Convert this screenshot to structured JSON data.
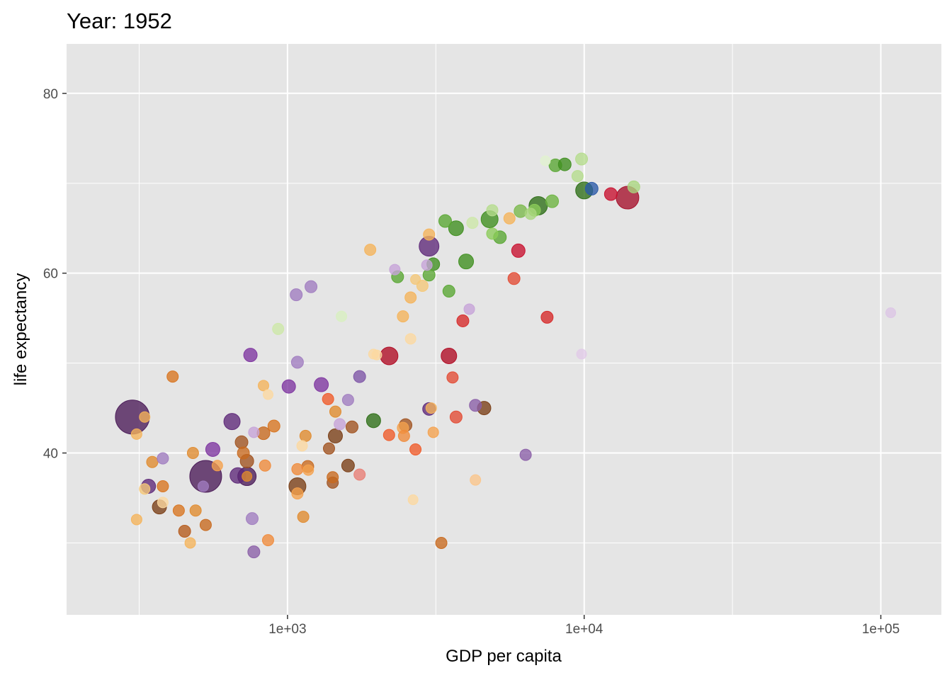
{
  "chart_data": {
    "type": "scatter",
    "title": "Year: 1952",
    "xlabel": "GDP per capita",
    "ylabel": "life expectancy",
    "x_scale": "log10",
    "xlim": [
      180,
      160000
    ],
    "ylim": [
      22,
      85.5
    ],
    "x_ticks": [
      {
        "value": 1000,
        "label": "1e+03"
      },
      {
        "value": 10000,
        "label": "1e+04"
      },
      {
        "value": 100000,
        "label": "1e+05"
      }
    ],
    "y_ticks": [
      {
        "value": 40,
        "label": "40"
      },
      {
        "value": 60,
        "label": "60"
      },
      {
        "value": 80,
        "label": "80"
      }
    ],
    "x_minor": [
      316.23,
      3162.28,
      31622.78
    ],
    "y_minor": [
      30,
      50,
      70
    ],
    "grid": true,
    "legend": "none",
    "points": [
      {
        "x": 300,
        "y": 44.0,
        "size": 48,
        "color": "#4a1a57"
      },
      {
        "x": 530,
        "y": 37.4,
        "size": 45,
        "color": "#4a1a57"
      },
      {
        "x": 14000,
        "y": 68.4,
        "size": 32,
        "color": "#a50f2a"
      },
      {
        "x": 3000,
        "y": 63.0,
        "size": 28,
        "color": "#5e2878"
      },
      {
        "x": 4800,
        "y": 66.0,
        "size": 24,
        "color": "#3e8e1e"
      },
      {
        "x": 7000,
        "y": 67.5,
        "size": 26,
        "color": "#2d6e16"
      },
      {
        "x": 10000,
        "y": 69.2,
        "size": 24,
        "color": "#2d6e16"
      },
      {
        "x": 2200,
        "y": 50.8,
        "size": 25,
        "color": "#b00a23"
      },
      {
        "x": 650,
        "y": 43.5,
        "size": 23,
        "color": "#5e2878"
      },
      {
        "x": 730,
        "y": 37.4,
        "size": 26,
        "color": "#4a1a57"
      },
      {
        "x": 680,
        "y": 37.5,
        "size": 22,
        "color": "#5e2878"
      },
      {
        "x": 1080,
        "y": 36.3,
        "size": 24,
        "color": "#7a3e15"
      },
      {
        "x": 3500,
        "y": 50.8,
        "size": 22,
        "color": "#b00a23"
      },
      {
        "x": 340,
        "y": 36.3,
        "size": 20,
        "color": "#5e2878"
      },
      {
        "x": 370,
        "y": 34.0,
        "size": 20,
        "color": "#7a3e15"
      },
      {
        "x": 560,
        "y": 40.4,
        "size": 20,
        "color": "#7e35a0"
      },
      {
        "x": 1300,
        "y": 47.6,
        "size": 20,
        "color": "#7e35a0"
      },
      {
        "x": 1450,
        "y": 41.9,
        "size": 20,
        "color": "#7a3e15"
      },
      {
        "x": 1950,
        "y": 43.6,
        "size": 20,
        "color": "#2d6e16"
      },
      {
        "x": 3700,
        "y": 65.0,
        "size": 21,
        "color": "#3e8e1e"
      },
      {
        "x": 4000,
        "y": 61.3,
        "size": 21,
        "color": "#3e8e1e"
      },
      {
        "x": 3400,
        "y": 65.8,
        "size": 18,
        "color": "#58a632"
      },
      {
        "x": 5200,
        "y": 64.0,
        "size": 18,
        "color": "#58a632"
      },
      {
        "x": 3100,
        "y": 61.0,
        "size": 18,
        "color": "#3e8e1e"
      },
      {
        "x": 3500,
        "y": 58.0,
        "size": 17,
        "color": "#58a632"
      },
      {
        "x": 8000,
        "y": 72.0,
        "size": 18,
        "color": "#58a632"
      },
      {
        "x": 8600,
        "y": 72.1,
        "size": 18,
        "color": "#3e8e1e"
      },
      {
        "x": 10600,
        "y": 69.4,
        "size": 18,
        "color": "#2a5aa8"
      },
      {
        "x": 12300,
        "y": 68.8,
        "size": 18,
        "color": "#c8102e"
      },
      {
        "x": 6000,
        "y": 62.5,
        "size": 19,
        "color": "#c8102e"
      },
      {
        "x": 7500,
        "y": 55.1,
        "size": 17,
        "color": "#d62828"
      },
      {
        "x": 3900,
        "y": 54.7,
        "size": 17,
        "color": "#d62828"
      },
      {
        "x": 5800,
        "y": 59.4,
        "size": 17,
        "color": "#e34a33"
      },
      {
        "x": 3600,
        "y": 48.4,
        "size": 16,
        "color": "#e34a33"
      },
      {
        "x": 3700,
        "y": 44.0,
        "size": 17,
        "color": "#e34a33"
      },
      {
        "x": 4600,
        "y": 45.0,
        "size": 19,
        "color": "#7a3e15"
      },
      {
        "x": 3000,
        "y": 44.9,
        "size": 18,
        "color": "#5e2878"
      },
      {
        "x": 2500,
        "y": 43.1,
        "size": 18,
        "color": "#a0521f"
      },
      {
        "x": 1650,
        "y": 42.9,
        "size": 17,
        "color": "#a0521f"
      },
      {
        "x": 1380,
        "y": 40.5,
        "size": 16,
        "color": "#a0521f"
      },
      {
        "x": 1600,
        "y": 38.6,
        "size": 18,
        "color": "#7a3e15"
      },
      {
        "x": 1420,
        "y": 36.7,
        "size": 16,
        "color": "#a0521f"
      },
      {
        "x": 1420,
        "y": 37.3,
        "size": 16,
        "color": "#c8691d"
      },
      {
        "x": 1450,
        "y": 44.6,
        "size": 16,
        "color": "#e08a2d"
      },
      {
        "x": 1370,
        "y": 46.0,
        "size": 16,
        "color": "#f05a28"
      },
      {
        "x": 1750,
        "y": 37.6,
        "size": 16,
        "color": "#e97e75"
      },
      {
        "x": 1600,
        "y": 45.9,
        "size": 16,
        "color": "#a07cc0"
      },
      {
        "x": 1500,
        "y": 43.2,
        "size": 16,
        "color": "#c6a3d8"
      },
      {
        "x": 1750,
        "y": 48.5,
        "size": 17,
        "color": "#7e55a6"
      },
      {
        "x": 2350,
        "y": 59.6,
        "size": 17,
        "color": "#58a632"
      },
      {
        "x": 3000,
        "y": 59.8,
        "size": 17,
        "color": "#58a632"
      },
      {
        "x": 2200,
        "y": 42.0,
        "size": 16,
        "color": "#f05a28"
      },
      {
        "x": 2450,
        "y": 42.8,
        "size": 16,
        "color": "#f5a14d"
      },
      {
        "x": 2470,
        "y": 41.9,
        "size": 16,
        "color": "#f08a3a"
      },
      {
        "x": 2700,
        "y": 40.4,
        "size": 16,
        "color": "#f05a28"
      },
      {
        "x": 3100,
        "y": 42.3,
        "size": 15,
        "color": "#f5a14d"
      },
      {
        "x": 3050,
        "y": 45.0,
        "size": 15,
        "color": "#f5b35a"
      },
      {
        "x": 3300,
        "y": 30.0,
        "size": 16,
        "color": "#c8691d"
      },
      {
        "x": 4300,
        "y": 45.3,
        "size": 17,
        "color": "#8b5fa8"
      },
      {
        "x": 6350,
        "y": 39.8,
        "size": 16,
        "color": "#8b5fa8"
      },
      {
        "x": 1070,
        "y": 57.6,
        "size": 17,
        "color": "#a07cc0"
      },
      {
        "x": 1200,
        "y": 58.5,
        "size": 17,
        "color": "#a07cc0"
      },
      {
        "x": 1080,
        "y": 50.1,
        "size": 17,
        "color": "#a07cc0"
      },
      {
        "x": 1010,
        "y": 47.4,
        "size": 19,
        "color": "#7e35a0"
      },
      {
        "x": 750,
        "y": 50.9,
        "size": 19,
        "color": "#7e35a0"
      },
      {
        "x": 930,
        "y": 53.8,
        "size": 16,
        "color": "#cde8a8"
      },
      {
        "x": 1520,
        "y": 55.2,
        "size": 15,
        "color": "#d8f0c0"
      },
      {
        "x": 1900,
        "y": 62.6,
        "size": 16,
        "color": "#f5b35a"
      },
      {
        "x": 1950,
        "y": 51.0,
        "size": 14,
        "color": "#fcd9a0"
      },
      {
        "x": 2600,
        "y": 57.3,
        "size": 16,
        "color": "#f5b35a"
      },
      {
        "x": 2600,
        "y": 52.7,
        "size": 15,
        "color": "#fcd9a0"
      },
      {
        "x": 2450,
        "y": 55.2,
        "size": 16,
        "color": "#f5b35a"
      },
      {
        "x": 2850,
        "y": 58.6,
        "size": 16,
        "color": "#f5c878"
      },
      {
        "x": 3000,
        "y": 64.3,
        "size": 16,
        "color": "#f5b35a"
      },
      {
        "x": 2300,
        "y": 60.4,
        "size": 15,
        "color": "#c6a3d8"
      },
      {
        "x": 2950,
        "y": 60.9,
        "size": 15,
        "color": "#c6a3d8"
      },
      {
        "x": 4200,
        "y": 65.6,
        "size": 16,
        "color": "#cde8a8"
      },
      {
        "x": 4100,
        "y": 56.0,
        "size": 15,
        "color": "#c6a3d8"
      },
      {
        "x": 4900,
        "y": 67.0,
        "size": 16,
        "color": "#b5dc8c"
      },
      {
        "x": 4900,
        "y": 64.4,
        "size": 16,
        "color": "#8ccc5a"
      },
      {
        "x": 5600,
        "y": 66.1,
        "size": 16,
        "color": "#f5b35a"
      },
      {
        "x": 6100,
        "y": 66.9,
        "size": 18,
        "color": "#7ab84a"
      },
      {
        "x": 6600,
        "y": 66.6,
        "size": 16,
        "color": "#a9d67e"
      },
      {
        "x": 6800,
        "y": 67.0,
        "size": 17,
        "color": "#8ccc5a"
      },
      {
        "x": 7400,
        "y": 72.5,
        "size": 14,
        "color": "#e2f2d0"
      },
      {
        "x": 7800,
        "y": 68.0,
        "size": 18,
        "color": "#6cb33f"
      },
      {
        "x": 9500,
        "y": 70.8,
        "size": 16,
        "color": "#b5dc8c"
      },
      {
        "x": 9800,
        "y": 72.7,
        "size": 17,
        "color": "#b5dc8c"
      },
      {
        "x": 14700,
        "y": 69.6,
        "size": 17,
        "color": "#a9d67e"
      },
      {
        "x": 9800,
        "y": 51.0,
        "size": 14,
        "color": "#e2cbe8"
      },
      {
        "x": 108000,
        "y": 55.6,
        "size": 14,
        "color": "#dcc5e6"
      },
      {
        "x": 4300,
        "y": 37.0,
        "size": 15,
        "color": "#fbc58a"
      },
      {
        "x": 2650,
        "y": 34.8,
        "size": 14,
        "color": "#fcd9a0"
      },
      {
        "x": 770,
        "y": 42.3,
        "size": 15,
        "color": "#c6a3d8"
      },
      {
        "x": 770,
        "y": 29.0,
        "size": 17,
        "color": "#8b5fa8"
      },
      {
        "x": 760,
        "y": 32.7,
        "size": 17,
        "color": "#a07cc0"
      },
      {
        "x": 730,
        "y": 39.1,
        "size": 19,
        "color": "#a0521f"
      },
      {
        "x": 700,
        "y": 41.2,
        "size": 18,
        "color": "#a0521f"
      },
      {
        "x": 710,
        "y": 40.0,
        "size": 17,
        "color": "#c8691d"
      },
      {
        "x": 830,
        "y": 42.2,
        "size": 18,
        "color": "#c8691d"
      },
      {
        "x": 900,
        "y": 43.0,
        "size": 17,
        "color": "#d8741f"
      },
      {
        "x": 830,
        "y": 47.5,
        "size": 15,
        "color": "#f5b35a"
      },
      {
        "x": 860,
        "y": 46.5,
        "size": 14,
        "color": "#fcd9a0"
      },
      {
        "x": 840,
        "y": 38.6,
        "size": 16,
        "color": "#f08a3a"
      },
      {
        "x": 730,
        "y": 37.4,
        "size": 14,
        "color": "#e08a2d"
      },
      {
        "x": 860,
        "y": 30.3,
        "size": 16,
        "color": "#f08a3a"
      },
      {
        "x": 1080,
        "y": 38.2,
        "size": 16,
        "color": "#f08a3a"
      },
      {
        "x": 1080,
        "y": 35.5,
        "size": 16,
        "color": "#f5a14d"
      },
      {
        "x": 1120,
        "y": 40.8,
        "size": 15,
        "color": "#fcd9a0"
      },
      {
        "x": 1150,
        "y": 41.9,
        "size": 16,
        "color": "#e08a2d"
      },
      {
        "x": 1170,
        "y": 38.5,
        "size": 17,
        "color": "#c8691d"
      },
      {
        "x": 1130,
        "y": 32.9,
        "size": 16,
        "color": "#e08a2d"
      },
      {
        "x": 1175,
        "y": 38.1,
        "size": 15,
        "color": "#f5a14d"
      },
      {
        "x": 580,
        "y": 38.6,
        "size": 15,
        "color": "#f5a14d"
      },
      {
        "x": 480,
        "y": 40.0,
        "size": 16,
        "color": "#e08a2d"
      },
      {
        "x": 520,
        "y": 36.3,
        "size": 15,
        "color": "#a07cc0"
      },
      {
        "x": 490,
        "y": 33.6,
        "size": 16,
        "color": "#e08a2d"
      },
      {
        "x": 530,
        "y": 32.0,
        "size": 16,
        "color": "#c8691d"
      },
      {
        "x": 430,
        "y": 33.6,
        "size": 16,
        "color": "#d8741f"
      },
      {
        "x": 450,
        "y": 31.3,
        "size": 17,
        "color": "#b55a1a"
      },
      {
        "x": 470,
        "y": 30.0,
        "size": 15,
        "color": "#f5b35a"
      },
      {
        "x": 350,
        "y": 39.0,
        "size": 16,
        "color": "#e08a2d"
      },
      {
        "x": 380,
        "y": 39.4,
        "size": 16,
        "color": "#a07cc0"
      },
      {
        "x": 380,
        "y": 36.3,
        "size": 16,
        "color": "#d8741f"
      },
      {
        "x": 380,
        "y": 34.5,
        "size": 15,
        "color": "#fcd9a0"
      },
      {
        "x": 330,
        "y": 36.0,
        "size": 15,
        "color": "#f5c878"
      },
      {
        "x": 310,
        "y": 42.1,
        "size": 15,
        "color": "#f5b35a"
      },
      {
        "x": 310,
        "y": 32.6,
        "size": 15,
        "color": "#f5b35a"
      },
      {
        "x": 330,
        "y": 44.0,
        "size": 15,
        "color": "#f5b35a"
      },
      {
        "x": 410,
        "y": 48.5,
        "size": 16,
        "color": "#d8741f"
      },
      {
        "x": 2700,
        "y": 59.3,
        "size": 14,
        "color": "#f5c878"
      },
      {
        "x": 2000,
        "y": 50.9,
        "size": 14,
        "color": "#fcd9a0"
      }
    ]
  }
}
